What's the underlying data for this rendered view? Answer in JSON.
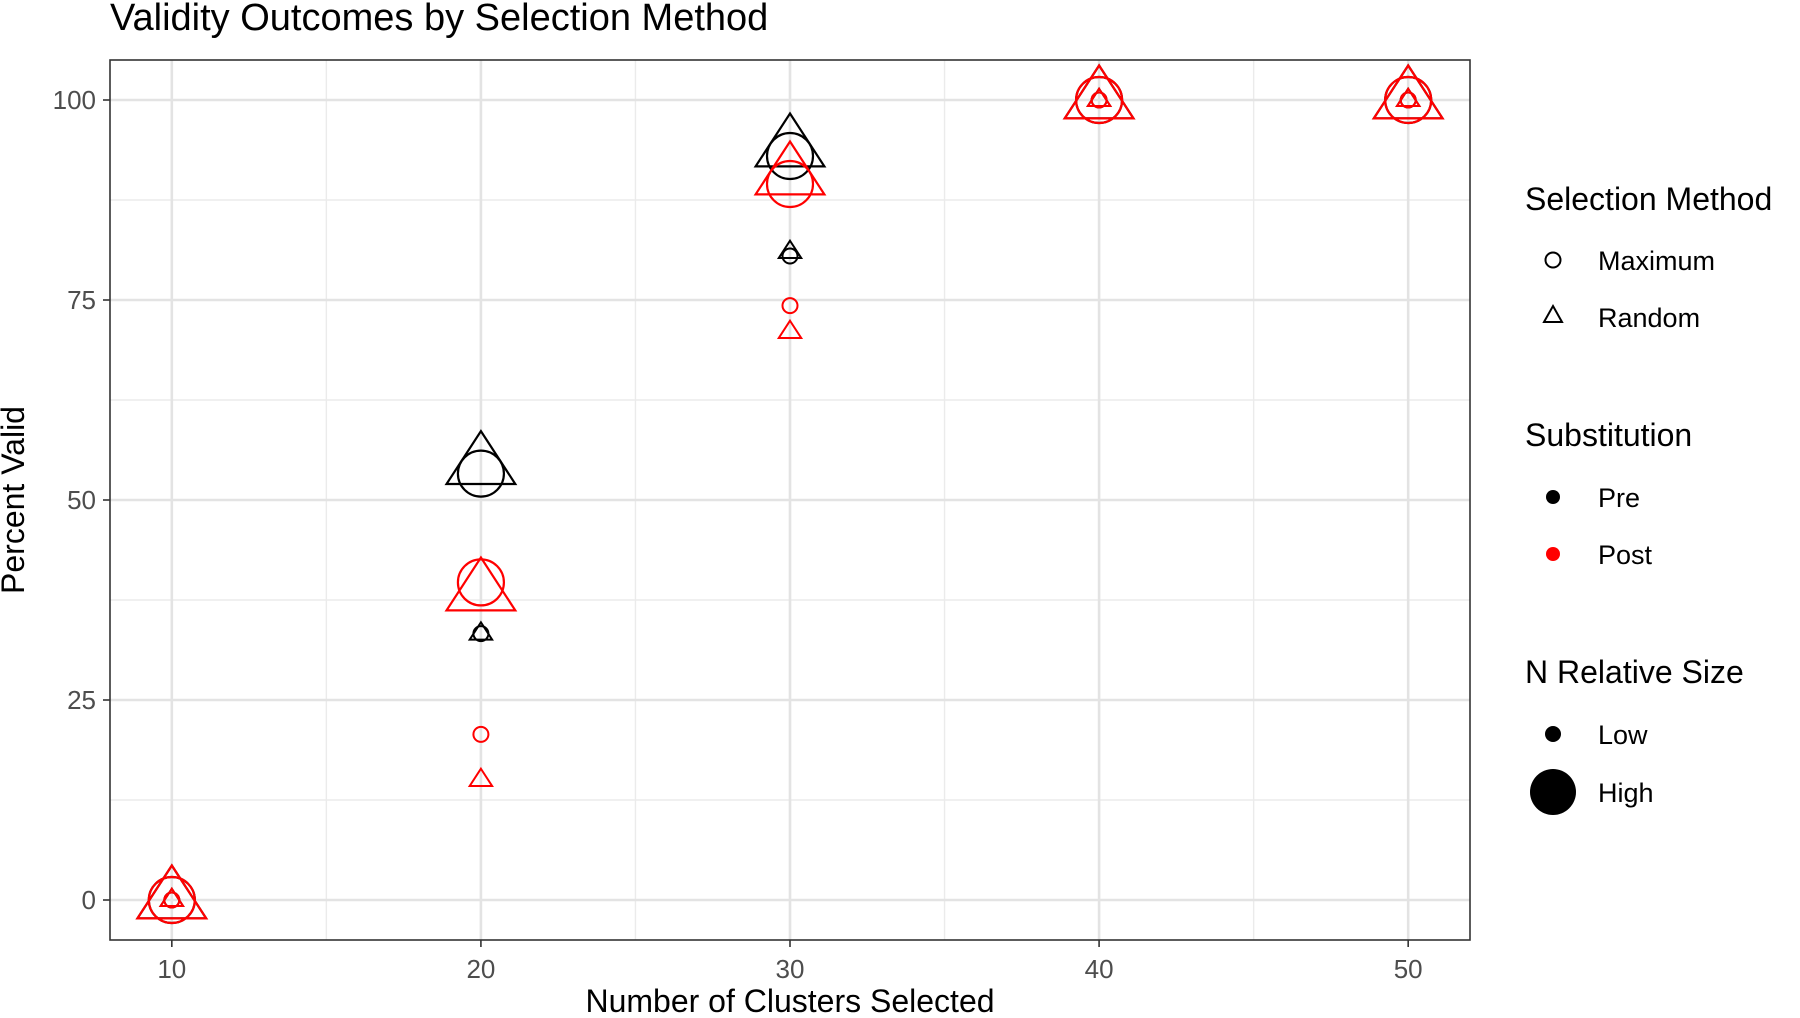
{
  "chart_data": {
    "type": "scatter",
    "title": "Validity Outcomes by Selection Method",
    "xlabel": "Number of Clusters Selected",
    "ylabel": "Percent Valid",
    "xlim": [
      8,
      52
    ],
    "ylim": [
      -5,
      105
    ],
    "x_ticks": [
      10,
      20,
      30,
      40,
      50
    ],
    "y_ticks": [
      0,
      25,
      50,
      75,
      100
    ],
    "grid": true,
    "legend_position": "right",
    "colors": {
      "Pre": "#000000",
      "Post": "#ff0000"
    },
    "legends": {
      "selection_method": {
        "title": "Selection Method",
        "items": [
          {
            "label": "Maximum",
            "shape": "circle"
          },
          {
            "label": "Random",
            "shape": "triangle"
          }
        ]
      },
      "substitution": {
        "title": "Substitution",
        "items": [
          {
            "label": "Pre",
            "color": "#000000"
          },
          {
            "label": "Post",
            "color": "#ff0000"
          }
        ]
      },
      "n_relative_size": {
        "title": "N Relative Size",
        "items": [
          {
            "label": "Low",
            "size": "low"
          },
          {
            "label": "High",
            "size": "high"
          }
        ]
      }
    },
    "points": [
      {
        "x": 10,
        "y": 0,
        "method": "Maximum",
        "substitution": "Pre",
        "size": "Low"
      },
      {
        "x": 10,
        "y": 0,
        "method": "Random",
        "substitution": "Pre",
        "size": "Low"
      },
      {
        "x": 10,
        "y": 0,
        "method": "Maximum",
        "substitution": "Pre",
        "size": "High"
      },
      {
        "x": 10,
        "y": 0,
        "method": "Random",
        "substitution": "Pre",
        "size": "High"
      },
      {
        "x": 10,
        "y": 0,
        "method": "Maximum",
        "substitution": "Post",
        "size": "Low"
      },
      {
        "x": 10,
        "y": 0,
        "method": "Random",
        "substitution": "Post",
        "size": "Low"
      },
      {
        "x": 10,
        "y": 0,
        "method": "Maximum",
        "substitution": "Post",
        "size": "High"
      },
      {
        "x": 10,
        "y": 0,
        "method": "Random",
        "substitution": "Post",
        "size": "High"
      },
      {
        "x": 20,
        "y": 33.3,
        "method": "Maximum",
        "substitution": "Pre",
        "size": "Low"
      },
      {
        "x": 20,
        "y": 33.3,
        "method": "Random",
        "substitution": "Pre",
        "size": "Low"
      },
      {
        "x": 20,
        "y": 53.3,
        "method": "Maximum",
        "substitution": "Pre",
        "size": "High"
      },
      {
        "x": 20,
        "y": 54.3,
        "method": "Random",
        "substitution": "Pre",
        "size": "High"
      },
      {
        "x": 20,
        "y": 20.7,
        "method": "Maximum",
        "substitution": "Post",
        "size": "Low"
      },
      {
        "x": 20,
        "y": 15,
        "method": "Random",
        "substitution": "Post",
        "size": "Low"
      },
      {
        "x": 20,
        "y": 39.7,
        "method": "Maximum",
        "substitution": "Post",
        "size": "High"
      },
      {
        "x": 20,
        "y": 38.5,
        "method": "Random",
        "substitution": "Post",
        "size": "High"
      },
      {
        "x": 30,
        "y": 80.5,
        "method": "Maximum",
        "substitution": "Pre",
        "size": "Low"
      },
      {
        "x": 30,
        "y": 81,
        "method": "Random",
        "substitution": "Pre",
        "size": "Low"
      },
      {
        "x": 30,
        "y": 93,
        "method": "Maximum",
        "substitution": "Pre",
        "size": "High"
      },
      {
        "x": 30,
        "y": 94,
        "method": "Random",
        "substitution": "Pre",
        "size": "High"
      },
      {
        "x": 30,
        "y": 74.3,
        "method": "Maximum",
        "substitution": "Post",
        "size": "Low"
      },
      {
        "x": 30,
        "y": 71,
        "method": "Random",
        "substitution": "Post",
        "size": "Low"
      },
      {
        "x": 30,
        "y": 89.5,
        "method": "Maximum",
        "substitution": "Post",
        "size": "High"
      },
      {
        "x": 30,
        "y": 90.5,
        "method": "Random",
        "substitution": "Post",
        "size": "High"
      },
      {
        "x": 40,
        "y": 100,
        "method": "Maximum",
        "substitution": "Pre",
        "size": "Low"
      },
      {
        "x": 40,
        "y": 100,
        "method": "Random",
        "substitution": "Pre",
        "size": "Low"
      },
      {
        "x": 40,
        "y": 100,
        "method": "Maximum",
        "substitution": "Pre",
        "size": "High"
      },
      {
        "x": 40,
        "y": 100,
        "method": "Random",
        "substitution": "Pre",
        "size": "High"
      },
      {
        "x": 40,
        "y": 100,
        "method": "Maximum",
        "substitution": "Post",
        "size": "Low"
      },
      {
        "x": 40,
        "y": 100,
        "method": "Random",
        "substitution": "Post",
        "size": "Low"
      },
      {
        "x": 40,
        "y": 100,
        "method": "Maximum",
        "substitution": "Post",
        "size": "High"
      },
      {
        "x": 40,
        "y": 100,
        "method": "Random",
        "substitution": "Post",
        "size": "High"
      },
      {
        "x": 50,
        "y": 100,
        "method": "Maximum",
        "substitution": "Pre",
        "size": "Low"
      },
      {
        "x": 50,
        "y": 100,
        "method": "Random",
        "substitution": "Pre",
        "size": "Low"
      },
      {
        "x": 50,
        "y": 100,
        "method": "Maximum",
        "substitution": "Pre",
        "size": "High"
      },
      {
        "x": 50,
        "y": 100,
        "method": "Random",
        "substitution": "Pre",
        "size": "High"
      },
      {
        "x": 50,
        "y": 100,
        "method": "Maximum",
        "substitution": "Post",
        "size": "Low"
      },
      {
        "x": 50,
        "y": 100,
        "method": "Random",
        "substitution": "Post",
        "size": "Low"
      },
      {
        "x": 50,
        "y": 100,
        "method": "Maximum",
        "substitution": "Post",
        "size": "High"
      },
      {
        "x": 50,
        "y": 100,
        "method": "Random",
        "substitution": "Post",
        "size": "High"
      }
    ]
  }
}
